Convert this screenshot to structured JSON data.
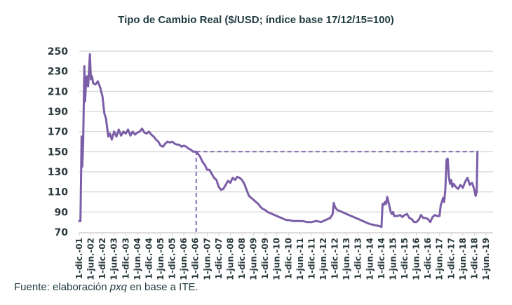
{
  "source": {
    "prefix": "Fuente: elaboración ",
    "italic": "pxq",
    "suffix": " en base a ITE."
  },
  "chart_data": {
    "type": "line",
    "title": "Tipo de Cambio Real ($/USD; índice base 17/12/15=100)",
    "xlabel": "",
    "ylabel": "",
    "ylim": [
      70,
      250
    ],
    "yticks": [
      70,
      90,
      110,
      130,
      150,
      170,
      190,
      210,
      230,
      250
    ],
    "grid": true,
    "x_tick_labels": [
      "1-dic.-01",
      "1-jun.-02",
      "1-dic.-02",
      "1-jun.-03",
      "1-dic.-03",
      "1-jun.-04",
      "1-dic.-04",
      "1-jun.-05",
      "1-dic.-05",
      "1-jun.-06",
      "1-dic.-06",
      "1-jun.-07",
      "1-dic.-07",
      "1-jun.-08",
      "1-dic.-08",
      "1-jun.-09",
      "1-dic.-09",
      "1-jun.-10",
      "1-dic.-10",
      "1-jun.-11",
      "1-dic.-11",
      "1-jun.-12",
      "1-dic.-12",
      "1-jun.-13",
      "1-dic.-13",
      "1-jun.-14",
      "1-dic.-14",
      "1-jun.-15",
      "1-dic.-15",
      "1-jun.-16",
      "1-dic.-16",
      "1-jun.-17",
      "1-dic.-17",
      "1-jun.-18",
      "1-dic.-18",
      "1-jun.-19"
    ],
    "x_unit": "years since 1-dic-01",
    "series": [
      {
        "name": "Tipo de Cambio Real",
        "color": "#7b5ea7",
        "points": [
          [
            0.0,
            81
          ],
          [
            0.05,
            81
          ],
          [
            0.08,
            130
          ],
          [
            0.1,
            165
          ],
          [
            0.13,
            135
          ],
          [
            0.17,
            160
          ],
          [
            0.22,
            235
          ],
          [
            0.25,
            200
          ],
          [
            0.3,
            222
          ],
          [
            0.33,
            225
          ],
          [
            0.38,
            215
          ],
          [
            0.42,
            230
          ],
          [
            0.46,
            247
          ],
          [
            0.5,
            222
          ],
          [
            0.55,
            225
          ],
          [
            0.6,
            218
          ],
          [
            0.7,
            217
          ],
          [
            0.8,
            220
          ],
          [
            0.9,
            214
          ],
          [
            1.0,
            205
          ],
          [
            1.08,
            188
          ],
          [
            1.15,
            183
          ],
          [
            1.25,
            165
          ],
          [
            1.32,
            168
          ],
          [
            1.4,
            162
          ],
          [
            1.5,
            170
          ],
          [
            1.6,
            165
          ],
          [
            1.7,
            172
          ],
          [
            1.8,
            166
          ],
          [
            1.9,
            170
          ],
          [
            2.0,
            168
          ],
          [
            2.1,
            172
          ],
          [
            2.2,
            166
          ],
          [
            2.3,
            170
          ],
          [
            2.4,
            167
          ],
          [
            2.5,
            169
          ],
          [
            2.6,
            170
          ],
          [
            2.7,
            173
          ],
          [
            2.8,
            169
          ],
          [
            2.9,
            168
          ],
          [
            3.0,
            170
          ],
          [
            3.1,
            167
          ],
          [
            3.2,
            165
          ],
          [
            3.3,
            162
          ],
          [
            3.4,
            160
          ],
          [
            3.5,
            156
          ],
          [
            3.6,
            155
          ],
          [
            3.7,
            158
          ],
          [
            3.8,
            160
          ],
          [
            3.9,
            159
          ],
          [
            4.0,
            160
          ],
          [
            4.1,
            158
          ],
          [
            4.2,
            157
          ],
          [
            4.3,
            157
          ],
          [
            4.4,
            155
          ],
          [
            4.5,
            156
          ],
          [
            4.6,
            155
          ],
          [
            4.7,
            153
          ],
          [
            4.8,
            152
          ],
          [
            4.9,
            150
          ],
          [
            5.0,
            150
          ],
          [
            5.1,
            148
          ],
          [
            5.2,
            145
          ],
          [
            5.3,
            140
          ],
          [
            5.4,
            137
          ],
          [
            5.5,
            132
          ],
          [
            5.6,
            132
          ],
          [
            5.7,
            128
          ],
          [
            5.8,
            124
          ],
          [
            5.9,
            122
          ],
          [
            6.0,
            115
          ],
          [
            6.1,
            112
          ],
          [
            6.2,
            113
          ],
          [
            6.3,
            117
          ],
          [
            6.4,
            121
          ],
          [
            6.5,
            119
          ],
          [
            6.6,
            124
          ],
          [
            6.7,
            122
          ],
          [
            6.8,
            125
          ],
          [
            6.9,
            124
          ],
          [
            7.0,
            122
          ],
          [
            7.1,
            118
          ],
          [
            7.2,
            112
          ],
          [
            7.3,
            106
          ],
          [
            7.4,
            104
          ],
          [
            7.5,
            102
          ],
          [
            7.6,
            100
          ],
          [
            7.7,
            98
          ],
          [
            7.8,
            95
          ],
          [
            7.9,
            93
          ],
          [
            8.0,
            92
          ],
          [
            8.1,
            90
          ],
          [
            8.2,
            89
          ],
          [
            8.3,
            88
          ],
          [
            8.4,
            87
          ],
          [
            8.5,
            86
          ],
          [
            8.6,
            85
          ],
          [
            8.7,
            84
          ],
          [
            8.8,
            83
          ],
          [
            8.9,
            82
          ],
          [
            9.0,
            82
          ],
          [
            9.2,
            81
          ],
          [
            9.4,
            81
          ],
          [
            9.6,
            81
          ],
          [
            9.8,
            80
          ],
          [
            10.0,
            80
          ],
          [
            10.2,
            81
          ],
          [
            10.4,
            80
          ],
          [
            10.6,
            82
          ],
          [
            10.8,
            84
          ],
          [
            10.9,
            88
          ],
          [
            10.95,
            99
          ],
          [
            11.0,
            95
          ],
          [
            11.1,
            92
          ],
          [
            11.3,
            90
          ],
          [
            11.5,
            88
          ],
          [
            11.7,
            86
          ],
          [
            11.9,
            84
          ],
          [
            12.1,
            82
          ],
          [
            12.3,
            80
          ],
          [
            12.5,
            78
          ],
          [
            12.7,
            77
          ],
          [
            12.9,
            76
          ],
          [
            13.0,
            75
          ],
          [
            13.05,
            98
          ],
          [
            13.1,
            97
          ],
          [
            13.15,
            100
          ],
          [
            13.2,
            98
          ],
          [
            13.25,
            105
          ],
          [
            13.3,
            100
          ],
          [
            13.35,
            95
          ],
          [
            13.4,
            90
          ],
          [
            13.45,
            88
          ],
          [
            13.5,
            90
          ],
          [
            13.55,
            86
          ],
          [
            13.6,
            86
          ],
          [
            13.7,
            86
          ],
          [
            13.8,
            87
          ],
          [
            13.9,
            85
          ],
          [
            14.0,
            87
          ],
          [
            14.1,
            88
          ],
          [
            14.2,
            84
          ],
          [
            14.3,
            83
          ],
          [
            14.4,
            80
          ],
          [
            14.5,
            80
          ],
          [
            14.6,
            82
          ],
          [
            14.7,
            87
          ],
          [
            14.8,
            84
          ],
          [
            14.9,
            84
          ],
          [
            15.0,
            83
          ],
          [
            15.1,
            80
          ],
          [
            15.2,
            85
          ],
          [
            15.3,
            87
          ],
          [
            15.4,
            86
          ],
          [
            15.5,
            86
          ],
          [
            15.55,
            97
          ],
          [
            15.6,
            100
          ],
          [
            15.65,
            104
          ],
          [
            15.7,
            100
          ],
          [
            15.75,
            113
          ],
          [
            15.8,
            142
          ],
          [
            15.85,
            143
          ],
          [
            15.9,
            125
          ],
          [
            15.95,
            118
          ],
          [
            16.0,
            122
          ],
          [
            16.05,
            115
          ],
          [
            16.1,
            118
          ],
          [
            16.2,
            115
          ],
          [
            16.3,
            113
          ],
          [
            16.4,
            117
          ],
          [
            16.5,
            114
          ],
          [
            16.6,
            120
          ],
          [
            16.7,
            124
          ],
          [
            16.8,
            117
          ],
          [
            16.9,
            119
          ],
          [
            17.0,
            112
          ],
          [
            17.05,
            106
          ],
          [
            17.1,
            110
          ],
          [
            17.13,
            150
          ]
        ]
      }
    ],
    "reference_lines": [
      {
        "type": "horizontal",
        "value": 150,
        "style": "dashed",
        "from_x": 5.03,
        "to_x": 17.13
      },
      {
        "type": "vertical",
        "x": 5.03,
        "label_near": "1-jun.-07",
        "style": "dashed",
        "from_value": 70,
        "to_value": 150
      }
    ]
  }
}
